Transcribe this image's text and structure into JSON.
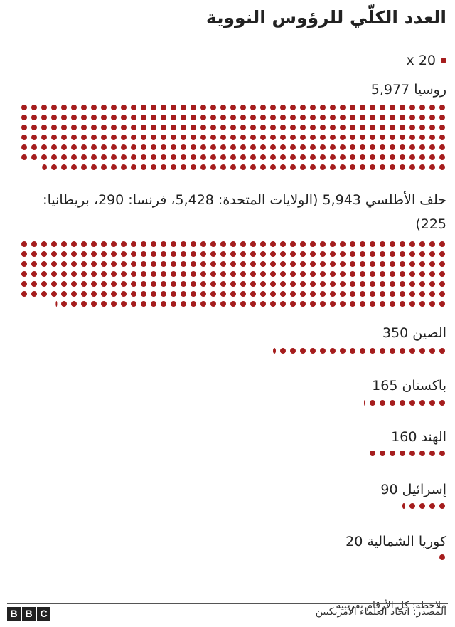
{
  "colors": {
    "dot": "#a51d1d",
    "text": "#222222"
  },
  "chart_data": {
    "type": "unit-dot",
    "title": "العدد الكلّي للرؤوس النووية",
    "legend": {
      "unit_label": "x 20",
      "unit_value": 20
    },
    "categories": [
      {
        "label": "روسيا 5,977",
        "value": 5977
      },
      {
        "label": "حلف الأطلسي 5,943 (الولايات المتحدة: 5,428، فرنسا: 290، بريطانيا: 225)",
        "value": 5943
      },
      {
        "label": "الصين 350",
        "value": 350
      },
      {
        "label": "باكستان 165",
        "value": 165
      },
      {
        "label": "الهند 160",
        "value": 160
      },
      {
        "label": "إسرائيل 90",
        "value": 90
      },
      {
        "label": "كوريا الشمالية 20",
        "value": 20
      }
    ],
    "note": "ملاحظة: كل الأرقام تقريبية",
    "source": "المصدر: اتحاد العلماء الأمريكيين"
  },
  "brand": {
    "letters": [
      "B",
      "B",
      "C"
    ]
  }
}
